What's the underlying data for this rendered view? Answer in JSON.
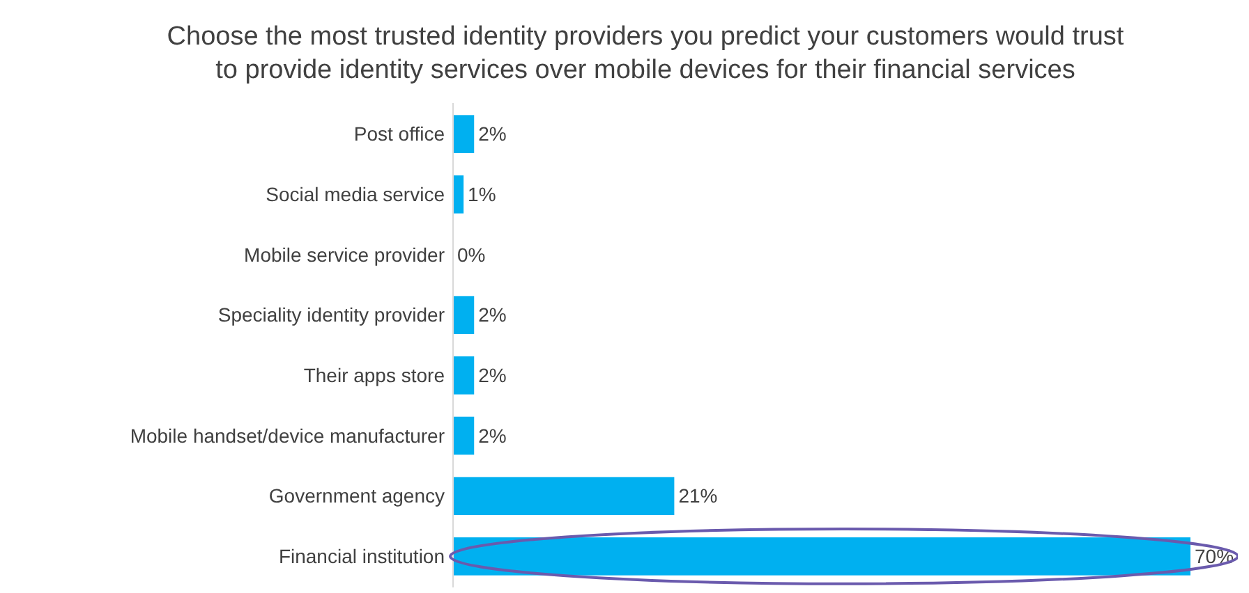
{
  "chart_data": {
    "type": "bar",
    "orientation": "horizontal",
    "title": "Choose the most trusted identity providers you predict your customers would trust\nto provide identity services over mobile devices for their financial services",
    "categories": [
      "Post office",
      "Social media service",
      "Mobile service provider",
      "Speciality identity provider",
      "Their apps store",
      "Mobile handset/device manufacturer",
      "Government agency",
      "Financial institution"
    ],
    "values": [
      2,
      1,
      0,
      2,
      2,
      2,
      21,
      70
    ],
    "value_labels": [
      "2%",
      "1%",
      "0%",
      "2%",
      "2%",
      "2%",
      "21%",
      "70%"
    ],
    "color": "#00b0f0"
  }
}
